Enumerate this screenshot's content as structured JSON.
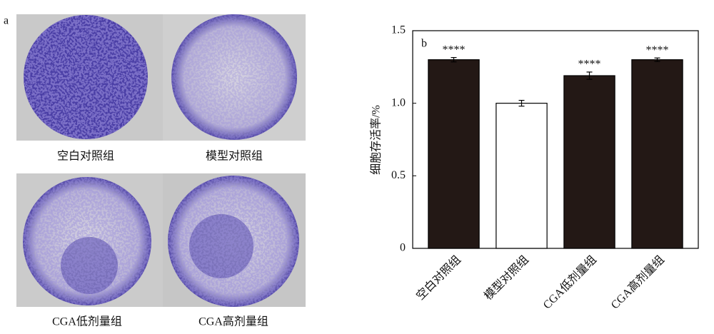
{
  "panel_a": {
    "label": "a",
    "captions": [
      "空白对照组",
      "模型对照组",
      "CGA低剂量组",
      "CGA高剂量组"
    ]
  },
  "chart_data": {
    "type": "bar",
    "panel_label": "b",
    "y_label": "细胞存活率/%",
    "categories": [
      "空白对照组",
      "模型对照组",
      "CGA低剂量组",
      "CGA高剂量组"
    ],
    "values": [
      1.3,
      1.0,
      1.19,
      1.3
    ],
    "errors": [
      0.015,
      0.02,
      0.025,
      0.012
    ],
    "annotations": [
      "****",
      null,
      "****",
      "****"
    ],
    "colors": [
      "#231815",
      "#ffffff",
      "#231815",
      "#231815"
    ],
    "ylim": [
      0,
      1.5
    ],
    "yticks": [
      0,
      0.5,
      {
        "value": 1,
        "label": "1.0"
      },
      1.5
    ]
  }
}
